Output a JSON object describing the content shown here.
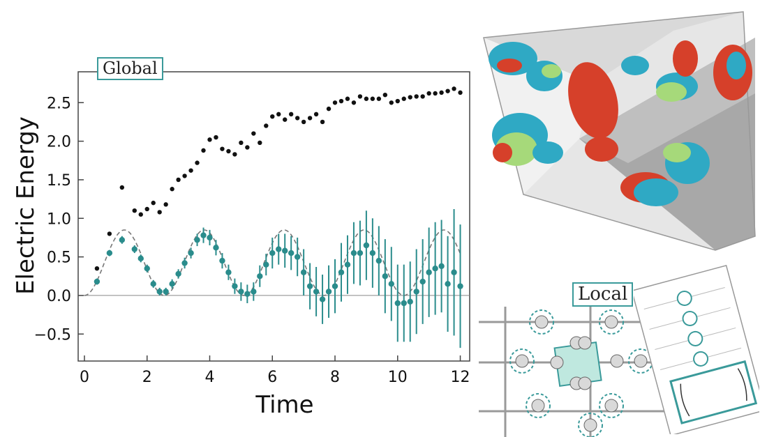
{
  "tags": {
    "global": "Global",
    "local": "Local"
  },
  "colors": {
    "black_series": "#111111",
    "teal_series": "#2a8c8c",
    "dashed_fit": "#777777",
    "tag_border": "#3a9a9a"
  },
  "chart_data": {
    "type": "scatter",
    "title": "",
    "xlabel": "Time",
    "ylabel": "Electric Energy",
    "xlim": [
      -0.2,
      12.3
    ],
    "ylim": [
      -0.85,
      2.9
    ],
    "xticks": [
      "0",
      "2",
      "4",
      "6",
      "8",
      "10",
      "12"
    ],
    "xtick_values": [
      0,
      2,
      4,
      6,
      8,
      10,
      12
    ],
    "yticks": [
      "−0.5",
      "0.0",
      "0.5",
      "1.0",
      "1.5",
      "2.0",
      "2.5"
    ],
    "ytick_values": [
      -0.5,
      0.0,
      0.5,
      1.0,
      1.5,
      2.0,
      2.5
    ],
    "grid": false,
    "series": [
      {
        "marker": "black-dot",
        "x": [
          0.4,
          0.8,
          1.2,
          1.6,
          1.8,
          2.0,
          2.2,
          2.4,
          2.6,
          2.8,
          3.0,
          3.2,
          3.4,
          3.6,
          3.8,
          4.0,
          4.2,
          4.4,
          4.6,
          4.8,
          5.0,
          5.2,
          5.4,
          5.6,
          5.8,
          6.0,
          6.2,
          6.4,
          6.6,
          6.8,
          7.0,
          7.2,
          7.4,
          7.6,
          7.8,
          8.0,
          8.2,
          8.4,
          8.6,
          8.8,
          9.0,
          9.2,
          9.4,
          9.6,
          9.8,
          10.0,
          10.2,
          10.4,
          10.6,
          10.8,
          11.0,
          11.2,
          11.4,
          11.6,
          11.8,
          12.0
        ],
        "y": [
          0.35,
          0.8,
          1.4,
          1.1,
          1.05,
          1.12,
          1.2,
          1.08,
          1.18,
          1.38,
          1.5,
          1.55,
          1.62,
          1.72,
          1.88,
          2.02,
          2.05,
          1.9,
          1.87,
          1.83,
          1.98,
          1.92,
          2.1,
          1.98,
          2.2,
          2.32,
          2.35,
          2.28,
          2.35,
          2.3,
          2.25,
          2.3,
          2.35,
          2.25,
          2.42,
          2.5,
          2.52,
          2.55,
          2.5,
          2.58,
          2.55,
          2.55,
          2.55,
          2.6,
          2.5,
          2.52,
          2.55,
          2.57,
          2.58,
          2.58,
          2.62,
          2.62,
          2.63,
          2.65,
          2.68,
          2.63
        ]
      },
      {
        "marker": "teal-dot-errorbar",
        "x": [
          0.4,
          0.8,
          1.2,
          1.6,
          1.8,
          2.0,
          2.2,
          2.4,
          2.6,
          2.8,
          3.0,
          3.2,
          3.4,
          3.6,
          3.8,
          4.0,
          4.2,
          4.4,
          4.6,
          4.8,
          5.0,
          5.2,
          5.4,
          5.6,
          5.8,
          6.0,
          6.2,
          6.4,
          6.6,
          6.8,
          7.0,
          7.2,
          7.4,
          7.6,
          7.8,
          8.0,
          8.2,
          8.4,
          8.6,
          8.8,
          9.0,
          9.2,
          9.4,
          9.6,
          9.8,
          10.0,
          10.2,
          10.4,
          10.6,
          10.8,
          11.0,
          11.2,
          11.4,
          11.6,
          11.8,
          12.0
        ],
        "y": [
          0.18,
          0.55,
          0.72,
          0.6,
          0.48,
          0.35,
          0.15,
          0.05,
          0.05,
          0.15,
          0.28,
          0.42,
          0.55,
          0.72,
          0.78,
          0.75,
          0.62,
          0.45,
          0.3,
          0.12,
          0.05,
          0.02,
          0.05,
          0.25,
          0.4,
          0.55,
          0.6,
          0.58,
          0.55,
          0.5,
          0.3,
          0.12,
          0.05,
          -0.05,
          0.05,
          0.12,
          0.3,
          0.4,
          0.55,
          0.55,
          0.65,
          0.55,
          0.45,
          0.25,
          0.15,
          -0.1,
          -0.1,
          -0.08,
          0.05,
          0.18,
          0.3,
          0.35,
          0.38,
          0.15,
          0.3,
          0.12
        ],
        "err": [
          0.04,
          0.04,
          0.05,
          0.05,
          0.05,
          0.05,
          0.05,
          0.05,
          0.05,
          0.06,
          0.06,
          0.07,
          0.07,
          0.08,
          0.1,
          0.1,
          0.1,
          0.1,
          0.1,
          0.1,
          0.12,
          0.12,
          0.12,
          0.14,
          0.14,
          0.2,
          0.2,
          0.22,
          0.22,
          0.25,
          0.3,
          0.3,
          0.32,
          0.32,
          0.34,
          0.35,
          0.38,
          0.38,
          0.4,
          0.42,
          0.45,
          0.45,
          0.45,
          0.48,
          0.48,
          0.5,
          0.5,
          0.52,
          0.55,
          0.55,
          0.58,
          0.6,
          0.6,
          0.62,
          0.82,
          0.8
        ]
      }
    ],
    "fit_curve": {
      "style": "dashed",
      "amplitude": 0.85,
      "period": 2.55,
      "x_range": [
        0,
        12
      ]
    }
  }
}
